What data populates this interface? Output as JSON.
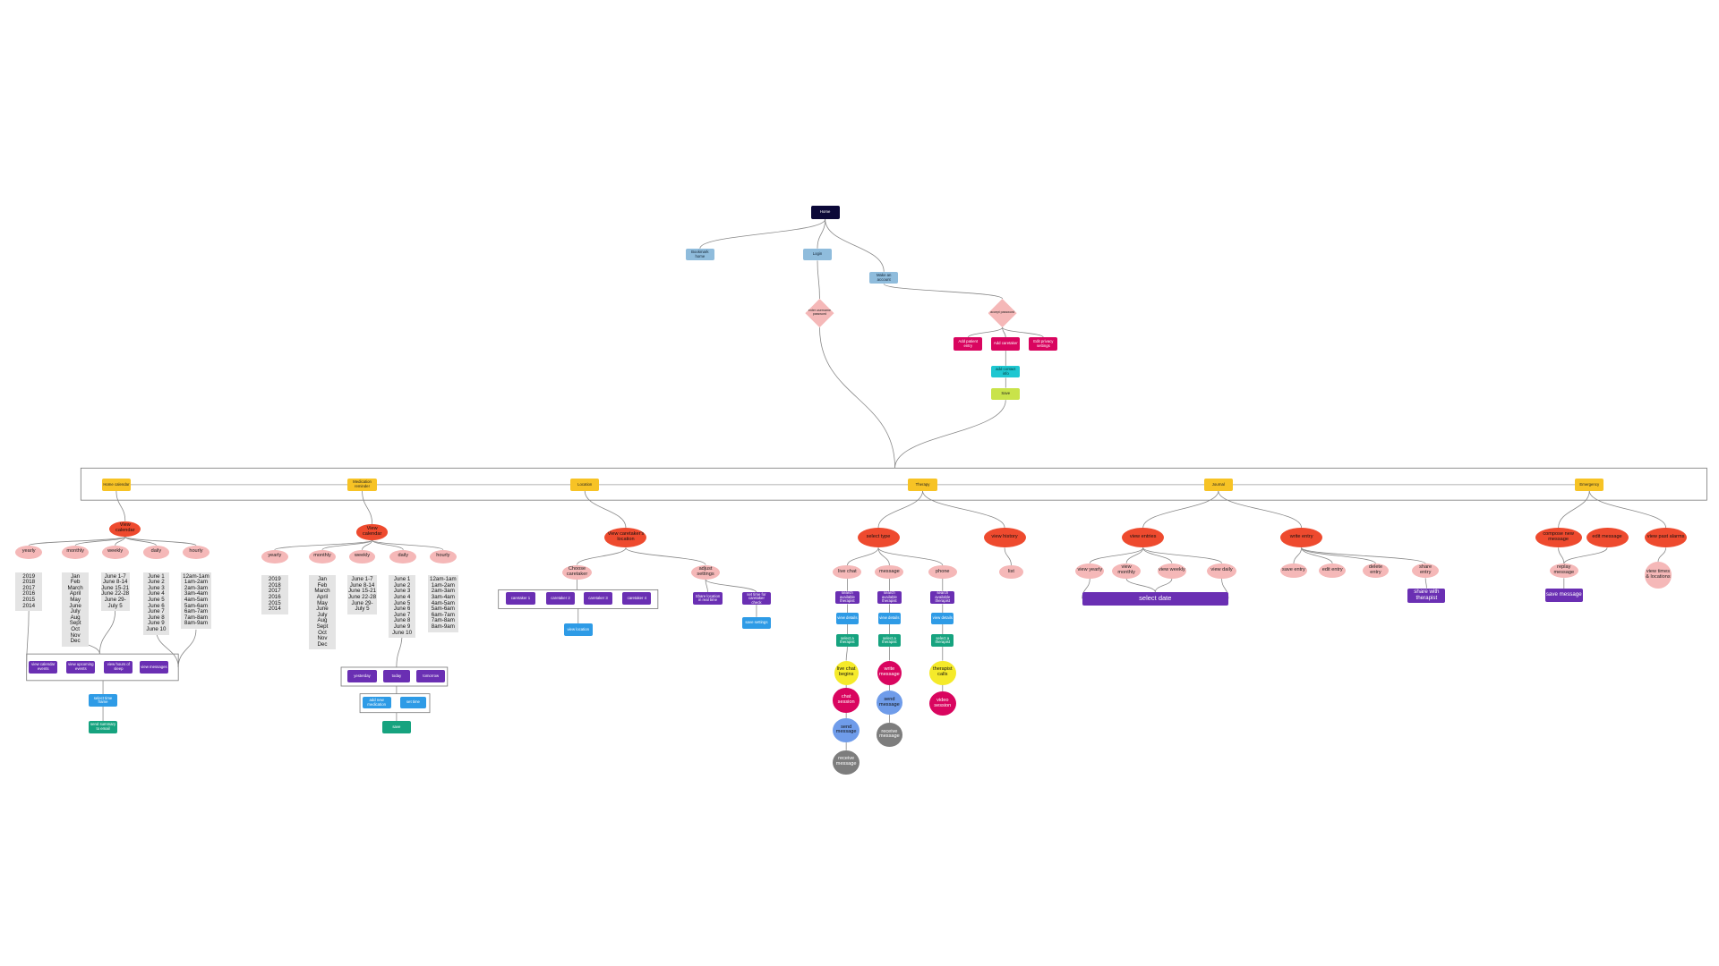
{
  "nodes": [
    "Home",
    "Bookmark home",
    "Login",
    "Make an account",
    "enter username password",
    "accept password",
    "Add patient entry",
    "Add caretaker",
    "Edit privacy settings",
    "add contact info",
    "Save",
    "Home calendar",
    "Medication reminder",
    "Location",
    "Therapy",
    "Journal",
    "Emergency",
    "View calendar",
    "yearly",
    "monthly",
    "weekly",
    "daily",
    "hourly",
    "view calendar events",
    "view upcoming events",
    "view hours of sleep",
    "view messages",
    "select time frame",
    "send summary to email",
    "View calendar",
    "yearly",
    "monthly",
    "weekly",
    "daily",
    "hourly",
    "yesterday",
    "today",
    "tomorrow",
    "add new medication",
    "set time",
    "save",
    "View caretaker's location",
    "Choose caretaker",
    "adjust settings",
    "caretaker 1",
    "caretaker 2",
    "caretaker 3",
    "caretaker 4",
    "view location",
    "Share location in real time",
    "set time for caretaker check",
    "save settings",
    "select type",
    "view history",
    "live chat",
    "message",
    "phone",
    "list",
    "search available therapist",
    "search available therapist",
    "search available therapist",
    "view details",
    "view details",
    "view details",
    "select a therapist",
    "select a therapist",
    "select a therapist",
    "live chat begins",
    "write message",
    "therapist calls",
    "chat session",
    "send message",
    "video session",
    "send message",
    "receive message",
    "receive message",
    "view entries",
    "write entry",
    "view yearly",
    "view monthly",
    "view weekly",
    "view daily",
    "select date",
    "save entry",
    "edit entry",
    "delete entry",
    "share entry",
    "share with therapist",
    "compose new message",
    "edit message",
    "view past alarms",
    "replay message",
    "save message",
    "view times & locations"
  ],
  "lists": [
    [
      "2019",
      "2018",
      "2017",
      "2016",
      "2015",
      "2014"
    ],
    [
      "Jan",
      "Feb",
      "March",
      "April",
      "May",
      "June",
      "July",
      "Aug",
      "Sept",
      "Oct",
      "Nov",
      "Dec"
    ],
    [
      "June 1-7",
      "June 8-14",
      "June 15-21",
      "June 22-28",
      "June 29-",
      "July 5"
    ],
    [
      "June 1",
      "June 2",
      "June 3",
      "June 4",
      "June 5",
      "June 6",
      "June 7",
      "June 8",
      "June 9",
      "June 10"
    ],
    [
      "12am-1am",
      "1am-2am",
      "2am-3am",
      "3am-4am",
      "4am-5am",
      "5am-6am",
      "6am-7am",
      "7am-8am",
      "8am-9am"
    ],
    [
      "2019",
      "2018",
      "2017",
      "2016",
      "2015",
      "2014"
    ],
    [
      "Jan",
      "Feb",
      "March",
      "April",
      "May",
      "June",
      "July",
      "Aug",
      "Sept",
      "Oct",
      "Nov",
      "Dec"
    ],
    [
      "June 1-7",
      "June 8-14",
      "June 15-21",
      "June 22-28",
      "June 29-",
      "July 5"
    ],
    [
      "June 1",
      "June 2",
      "June 3",
      "June 4",
      "June 5",
      "June 6",
      "June 7",
      "June 8",
      "June 9",
      "June 10"
    ],
    [
      "12am-1am",
      "1am-2am",
      "2am-3am",
      "3am-4am",
      "4am-5am",
      "5am-6am",
      "6am-7am",
      "7am-8am",
      "8am-9am"
    ]
  ]
}
